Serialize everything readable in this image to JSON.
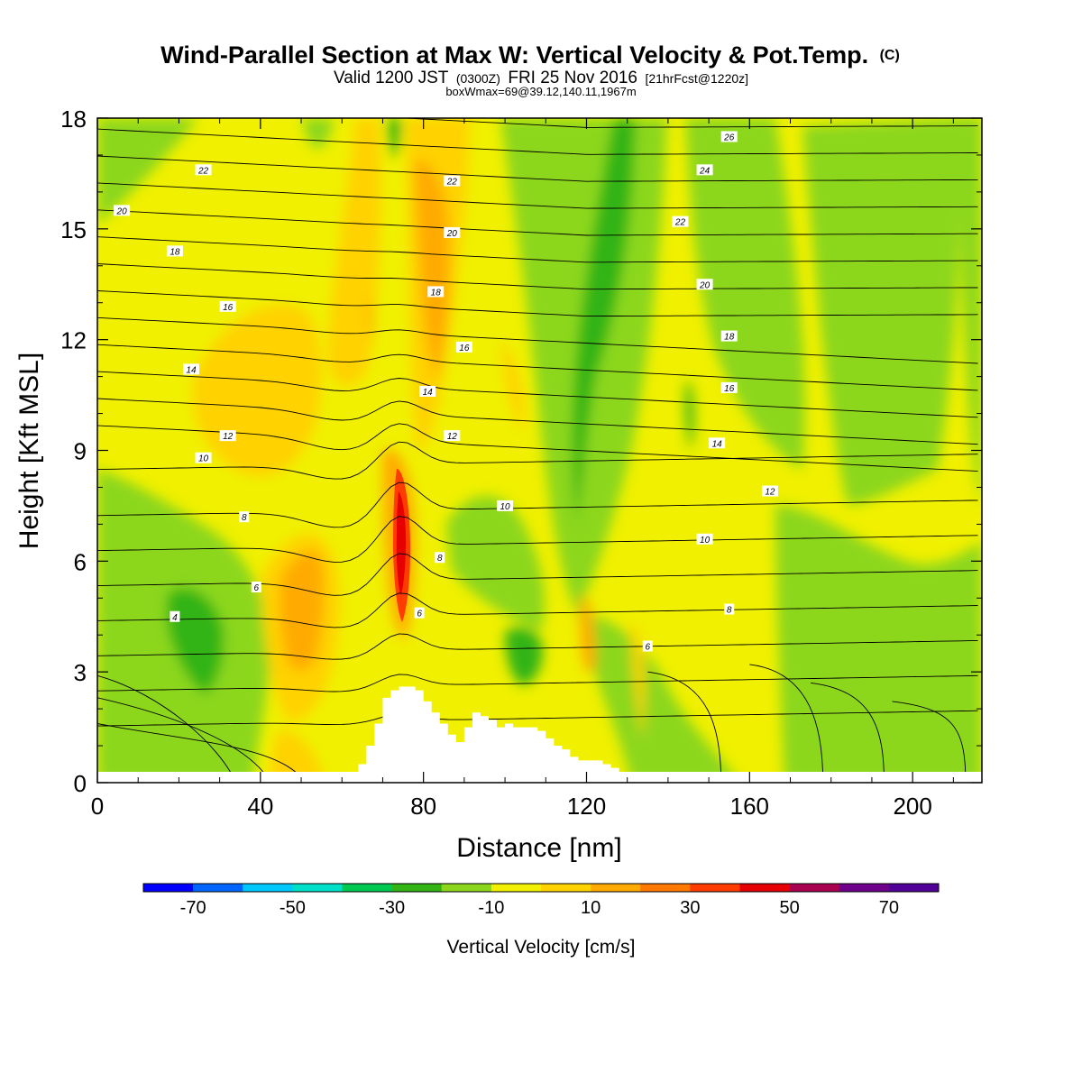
{
  "title": {
    "main": "Wind-Parallel Section at Max W: Vertical Velocity & Pot.Temp.",
    "tag": "(C)",
    "valid_prefix": "Valid 1200 JST",
    "valid_utc": "(0300Z)",
    "valid_date": "FRI 25 Nov 2016",
    "forecast_info": "[21hrFcst@1220z]",
    "box_info": "boxWmax=69@39.12,140.11,1967m"
  },
  "chart_data": {
    "type": "heatmap",
    "xlabel": "Distance [nm]",
    "ylabel": "Height [Kft MSL]",
    "xlim": [
      0,
      217
    ],
    "ylim": [
      0,
      18
    ],
    "x_ticks": [
      0,
      40,
      80,
      120,
      160,
      200
    ],
    "y_ticks": [
      0,
      3,
      6,
      9,
      12,
      15,
      18
    ],
    "colorbar": {
      "label": "Vertical Velocity [cm/s]",
      "levels": [
        -80,
        -70,
        -60,
        -50,
        -40,
        -30,
        -20,
        -10,
        0,
        10,
        20,
        30,
        40,
        50,
        60,
        70,
        80
      ],
      "tick_values": [
        -70,
        -50,
        -30,
        -10,
        10,
        30,
        50,
        70
      ],
      "colors": [
        "#0000ff",
        "#0066ff",
        "#00c8ff",
        "#00e0c8",
        "#00c850",
        "#32b414",
        "#8cd71e",
        "#f0f000",
        "#ffd200",
        "#ffaa00",
        "#ff7800",
        "#ff3c00",
        "#e60000",
        "#aa0050",
        "#6e008c",
        "#500096"
      ]
    },
    "terrain_x_nm": [
      62,
      64,
      66,
      68,
      70,
      72,
      74,
      76,
      78,
      80,
      82,
      84,
      86,
      88,
      90,
      92,
      94,
      96,
      98,
      100,
      102,
      104,
      106,
      108,
      110,
      112,
      114,
      116,
      118,
      120,
      122,
      124,
      126,
      128,
      130
    ],
    "terrain_kft": [
      0.2,
      0.5,
      1.0,
      1.6,
      2.3,
      2.5,
      2.6,
      2.6,
      2.5,
      2.2,
      1.9,
      1.6,
      1.3,
      1.1,
      1.5,
      1.9,
      1.8,
      1.7,
      1.5,
      1.6,
      1.5,
      1.5,
      1.5,
      1.4,
      1.2,
      1.0,
      0.9,
      0.7,
      0.6,
      0.6,
      0.6,
      0.5,
      0.4,
      0.2,
      0.1
    ],
    "features": [
      {
        "label": "max_w_core",
        "x": 74,
        "y": 6.8,
        "value": 69
      },
      {
        "label": "updraft_plume_1",
        "x": 82,
        "y": 14,
        "value": 30
      },
      {
        "label": "updraft_lee_1",
        "x": 50,
        "y": 5.2,
        "value": 30
      },
      {
        "label": "updraft_2",
        "x": 120,
        "y": 4.0,
        "value": 30
      },
      {
        "label": "downdraft_1",
        "x": 24,
        "y": 4.5,
        "value": -20
      },
      {
        "label": "downdraft_2",
        "x": 128,
        "y": 12,
        "value": -20
      },
      {
        "label": "downdraft_3",
        "x": 100,
        "y": 3.5,
        "value": -20
      }
    ],
    "theta_contours": {
      "levels": [
        4,
        6,
        8,
        10,
        12,
        14,
        16,
        18,
        20,
        22,
        24,
        26
      ],
      "labels": [
        {
          "text": "4",
          "x": 19,
          "y": 4.5
        },
        {
          "text": "6",
          "x": 39,
          "y": 5.3
        },
        {
          "text": "8",
          "x": 36,
          "y": 7.2
        },
        {
          "text": "10",
          "x": 26,
          "y": 8.8
        },
        {
          "text": "12",
          "x": 32,
          "y": 9.4
        },
        {
          "text": "14",
          "x": 23,
          "y": 11.2
        },
        {
          "text": "16",
          "x": 32,
          "y": 12.9
        },
        {
          "text": "18",
          "x": 19,
          "y": 14.4
        },
        {
          "text": "20",
          "x": 6,
          "y": 15.5
        },
        {
          "text": "22",
          "x": 26,
          "y": 16.6
        },
        {
          "text": "6",
          "x": 79,
          "y": 4.6
        },
        {
          "text": "8",
          "x": 84,
          "y": 6.1
        },
        {
          "text": "10",
          "x": 100,
          "y": 7.5
        },
        {
          "text": "12",
          "x": 87,
          "y": 9.4
        },
        {
          "text": "14",
          "x": 81,
          "y": 10.6
        },
        {
          "text": "16",
          "x": 90,
          "y": 11.8
        },
        {
          "text": "18",
          "x": 83,
          "y": 13.3
        },
        {
          "text": "20",
          "x": 87,
          "y": 14.9
        },
        {
          "text": "22",
          "x": 87,
          "y": 16.3
        },
        {
          "text": "6",
          "x": 135,
          "y": 3.7
        },
        {
          "text": "8",
          "x": 155,
          "y": 4.7
        },
        {
          "text": "10",
          "x": 149,
          "y": 6.6
        },
        {
          "text": "12",
          "x": 165,
          "y": 7.9
        },
        {
          "text": "14",
          "x": 152,
          "y": 9.2
        },
        {
          "text": "16",
          "x": 155,
          "y": 10.7
        },
        {
          "text": "18",
          "x": 155,
          "y": 12.1
        },
        {
          "text": "20",
          "x": 149,
          "y": 13.5
        },
        {
          "text": "22",
          "x": 143,
          "y": 15.2
        },
        {
          "text": "24",
          "x": 149,
          "y": 16.6
        },
        {
          "text": "26",
          "x": 155,
          "y": 17.5
        }
      ]
    }
  }
}
